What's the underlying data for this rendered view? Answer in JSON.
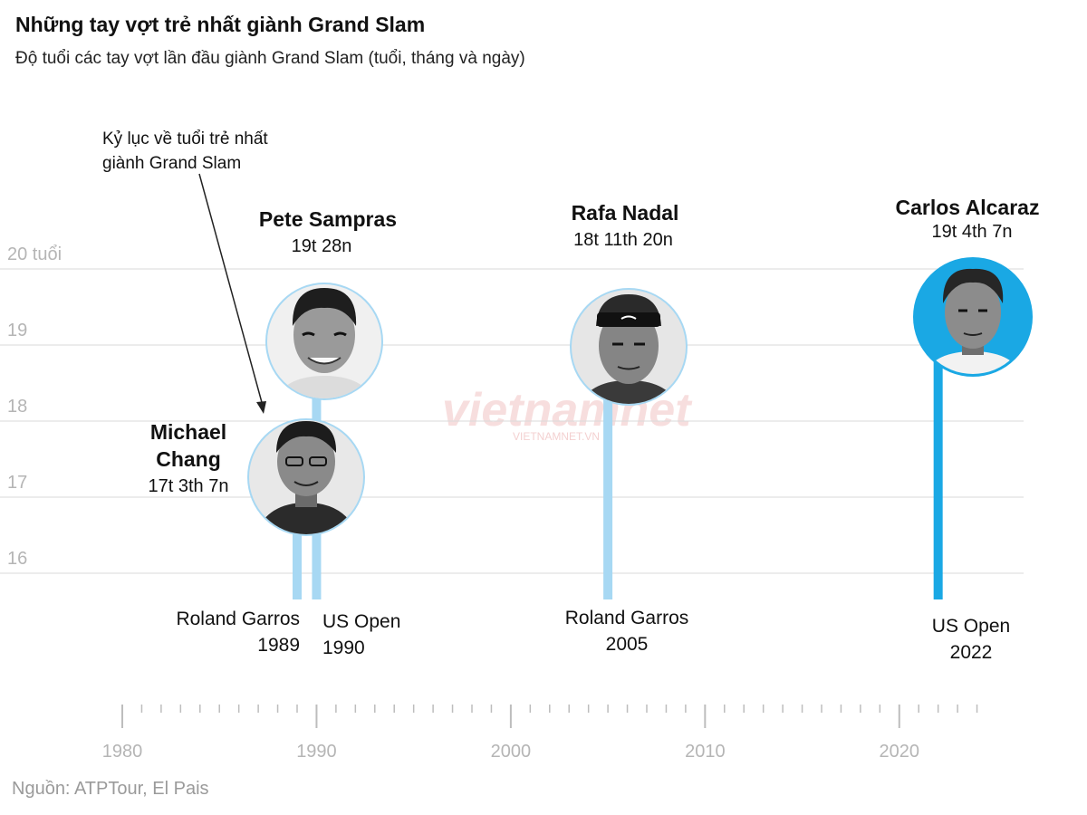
{
  "title": "Những tay vợt trẻ nhất giành Grand Slam",
  "subtitle": "Độ tuổi các tay vợt lần đầu giành Grand Slam (tuổi, tháng và ngày)",
  "source": "Nguồn: ATPTour, El Pais",
  "watermark": {
    "main": "vietnamnet",
    "sub": "VIETNAMNET.VN"
  },
  "annotation": {
    "lines": [
      "Kỷ lục về tuổi trẻ nhất",
      "giành Grand Slam"
    ]
  },
  "colors": {
    "stem_light": "#a7d8f3",
    "stem_strong": "#1aa8e4",
    "grid": "#d9d9d9",
    "axis_text": "#b5b5b5"
  },
  "chart_data": {
    "type": "scatter",
    "title": "Những tay vợt trẻ nhất giành Grand Slam",
    "subtitle": "Độ tuổi các tay vợt lần đầu giành Grand Slam (tuổi, tháng và ngày)",
    "xlabel": "",
    "ylabel": "",
    "xlim": [
      1980,
      2025
    ],
    "ylim": [
      16,
      20
    ],
    "y_ticks": [
      {
        "value": 16,
        "label": "16"
      },
      {
        "value": 17,
        "label": "17"
      },
      {
        "value": 18,
        "label": "18"
      },
      {
        "value": 19,
        "label": "19"
      },
      {
        "value": 20,
        "label": "20 tuổi"
      }
    ],
    "x_ticks": [
      {
        "value": 1980,
        "label": "1980"
      },
      {
        "value": 1990,
        "label": "1990"
      },
      {
        "value": 2000,
        "label": "2000"
      },
      {
        "value": 2010,
        "label": "2010"
      },
      {
        "value": 2020,
        "label": "2020"
      }
    ],
    "grid": true,
    "points": [
      {
        "name_lines": [
          "Michael",
          "Chang"
        ],
        "age_label": "17t 3th 7n",
        "age": 17.27,
        "year": 1989,
        "event_lines": [
          "Roland Garros",
          "1989"
        ],
        "highlight": false
      },
      {
        "name_lines": [
          "Pete Sampras"
        ],
        "age_label": "19t 28n",
        "age": 19.08,
        "year": 1990,
        "event_lines": [
          "US Open",
          "1990"
        ],
        "highlight": false
      },
      {
        "name_lines": [
          "Rafa Nadal"
        ],
        "age_label": "18t 11th 20n",
        "age": 18.97,
        "year": 2005,
        "event_lines": [
          "Roland Garros",
          "2005"
        ],
        "highlight": false
      },
      {
        "name_lines": [
          "Carlos Alcaraz"
        ],
        "age_label": "19t 4th 7n",
        "age": 19.36,
        "year": 2022,
        "event_lines": [
          "US Open",
          "2022"
        ],
        "highlight": true
      }
    ]
  }
}
